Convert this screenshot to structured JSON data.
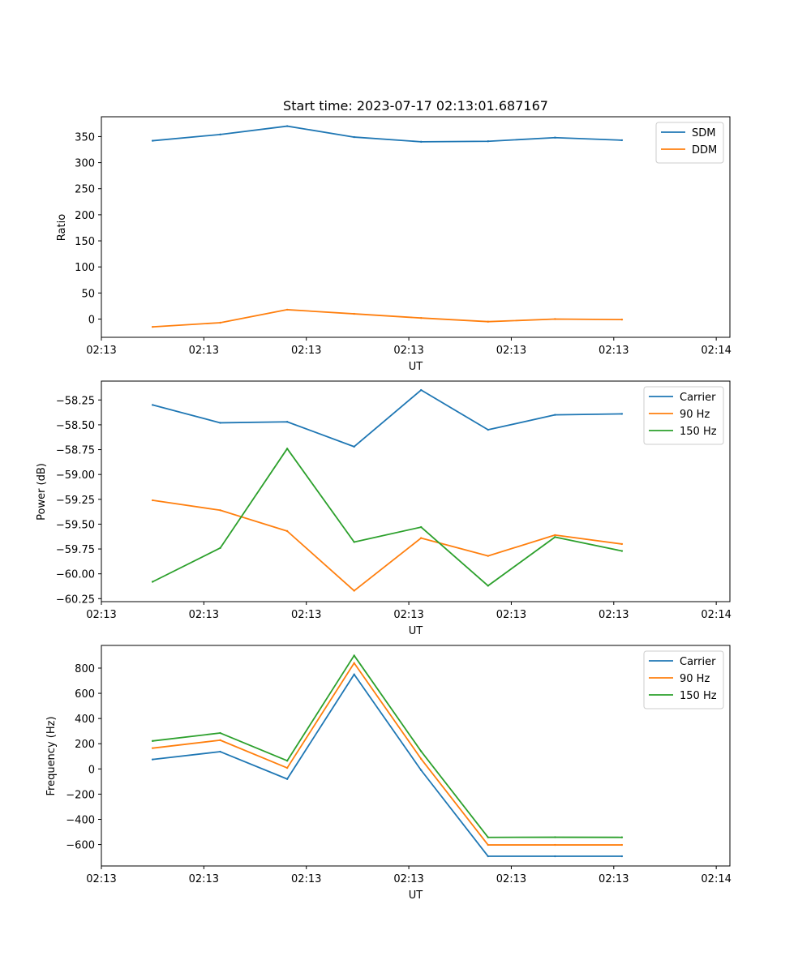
{
  "chart_data": [
    {
      "type": "line",
      "title": "Start time: 2023-07-17 02:13:01.687167",
      "xlabel": "UT",
      "ylabel": "Ratio",
      "xlim": [
        0,
        9.2
      ],
      "ylim": [
        -35,
        388
      ],
      "x": [
        0.75,
        1.74,
        2.72,
        3.7,
        4.68,
        5.66,
        6.64,
        7.62
      ],
      "x_tick_values": [
        0,
        1.5,
        3,
        4.5,
        6,
        7.5,
        9
      ],
      "x_tick_labels": [
        "02:13",
        "02:13",
        "02:13",
        "02:13",
        "02:13",
        "02:13",
        "02:14"
      ],
      "y_ticks": [
        0,
        50,
        100,
        150,
        200,
        250,
        300,
        350
      ],
      "y_tick_labels": [
        "0",
        "50",
        "100",
        "150",
        "200",
        "250",
        "300",
        "350"
      ],
      "legend_position": "top-right",
      "series": [
        {
          "name": "SDM",
          "color": "#1f77b4",
          "values": [
            342,
            354,
            370,
            349,
            340,
            341,
            348,
            343
          ]
        },
        {
          "name": "DDM",
          "color": "#ff7f0e",
          "values": [
            -15,
            -7,
            18,
            10,
            2,
            -5,
            0,
            -1
          ]
        }
      ]
    },
    {
      "type": "line",
      "title": "",
      "xlabel": "UT",
      "ylabel": "Power (dB)",
      "xlim": [
        0,
        9.2
      ],
      "ylim": [
        -60.28,
        -58.06
      ],
      "x": [
        0.75,
        1.74,
        2.72,
        3.7,
        4.68,
        5.66,
        6.64,
        7.62
      ],
      "x_tick_values": [
        0,
        1.5,
        3,
        4.5,
        6,
        7.5,
        9
      ],
      "x_tick_labels": [
        "02:13",
        "02:13",
        "02:13",
        "02:13",
        "02:13",
        "02:13",
        "02:14"
      ],
      "y_ticks": [
        -60.25,
        -60.0,
        -59.75,
        -59.5,
        -59.25,
        -59.0,
        -58.75,
        -58.5,
        -58.25
      ],
      "y_tick_labels": [
        "−60.25",
        "−60.00",
        "−59.75",
        "−59.50",
        "−59.25",
        "−59.00",
        "−58.75",
        "−58.50",
        "−58.25"
      ],
      "legend_position": "top-right",
      "series": [
        {
          "name": "Carrier",
          "color": "#1f77b4",
          "values": [
            -58.3,
            -58.48,
            -58.47,
            -58.72,
            -58.15,
            -58.55,
            -58.4,
            -58.39
          ]
        },
        {
          "name": "90 Hz",
          "color": "#ff7f0e",
          "values": [
            -59.26,
            -59.36,
            -59.57,
            -60.17,
            -59.64,
            -59.82,
            -59.61,
            -59.7
          ]
        },
        {
          "name": "150 Hz",
          "color": "#2ca02c",
          "values": [
            -60.08,
            -59.74,
            -58.74,
            -59.68,
            -59.53,
            -60.12,
            -59.63,
            -59.77
          ]
        }
      ]
    },
    {
      "type": "line",
      "title": "",
      "xlabel": "UT",
      "ylabel": "Frequency (Hz)",
      "xlim": [
        0,
        9.2
      ],
      "ylim": [
        -770,
        980
      ],
      "x": [
        0.75,
        1.74,
        2.72,
        3.7,
        4.68,
        5.66,
        6.64,
        7.62
      ],
      "x_tick_values": [
        0,
        1.5,
        3,
        4.5,
        6,
        7.5,
        9
      ],
      "x_tick_labels": [
        "02:13",
        "02:13",
        "02:13",
        "02:13",
        "02:13",
        "02:13",
        "02:14"
      ],
      "y_ticks": [
        -600,
        -400,
        -200,
        0,
        200,
        400,
        600,
        800
      ],
      "y_tick_labels": [
        "−600",
        "−400",
        "−200",
        "0",
        "200",
        "400",
        "600",
        "800"
      ],
      "legend_position": "top-right",
      "series": [
        {
          "name": "Carrier",
          "color": "#1f77b4",
          "values": [
            75,
            137,
            -80,
            750,
            -10,
            -693,
            -693,
            -693
          ]
        },
        {
          "name": "90 Hz",
          "color": "#ff7f0e",
          "values": [
            165,
            228,
            8,
            840,
            80,
            -603,
            -603,
            -603
          ]
        },
        {
          "name": "150 Hz",
          "color": "#2ca02c",
          "values": [
            222,
            285,
            65,
            900,
            140,
            -543,
            -542,
            -543
          ]
        }
      ]
    }
  ]
}
